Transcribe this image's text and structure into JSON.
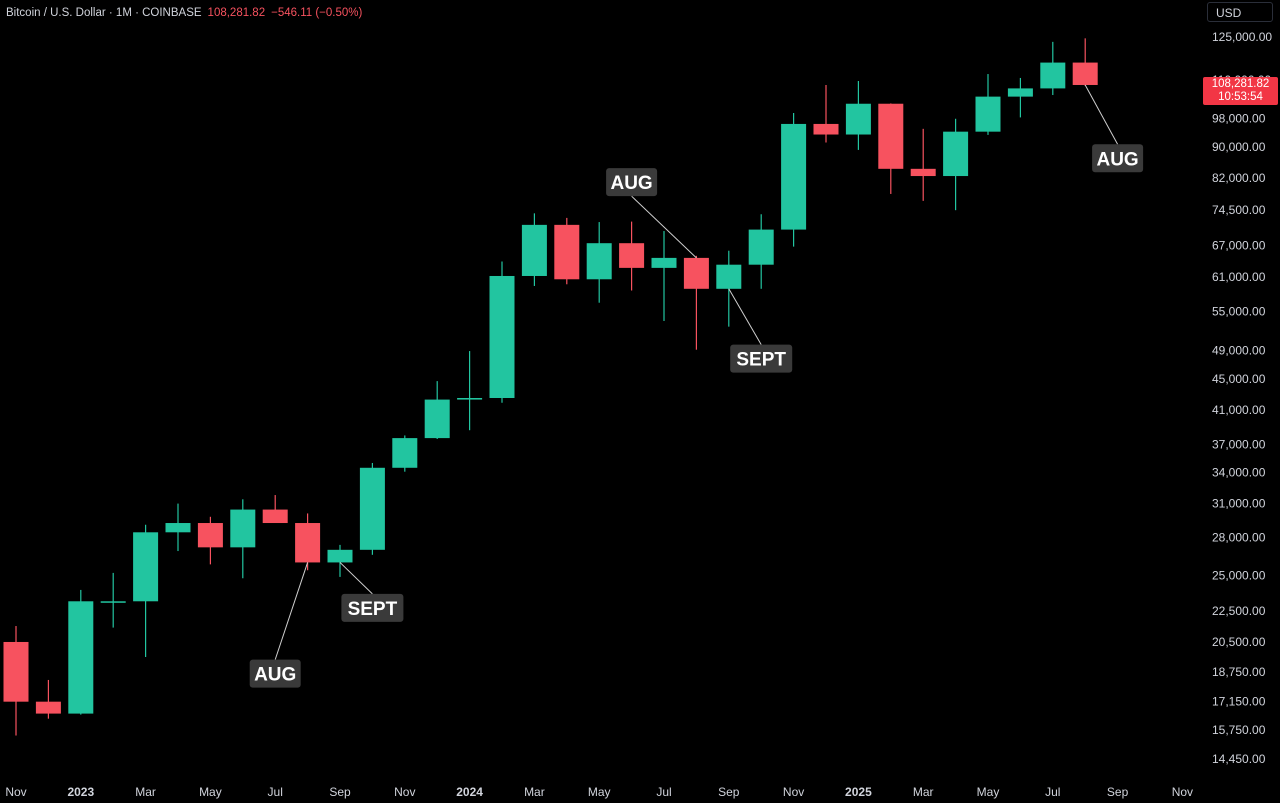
{
  "header": {
    "symbol": "Bitcoin / U.S. Dollar · 1M · COINBASE",
    "price": "108,281.82",
    "change": "−546.11 (−0.50%)"
  },
  "currency_button": "USD",
  "last_price_tag": {
    "price": "108,281.82",
    "countdown": "10:53:54"
  },
  "colors": {
    "up": "#22c5a0",
    "down": "#f7525f",
    "background": "#000000",
    "axis_text": "#d1d4dc",
    "callout_bg": "#3a3a3a"
  },
  "chart_data": {
    "type": "candlestick",
    "scale": "log",
    "grid": false,
    "ylim": [
      13800,
      133000
    ],
    "y_ticks": [
      "125,000.00",
      "110,000.00",
      "98,000.00",
      "90,000.00",
      "82,000.00",
      "74,500.00",
      "67,000.00",
      "61,000.00",
      "55,000.00",
      "49,000.00",
      "45,000.00",
      "41,000.00",
      "37,000.00",
      "34,000.00",
      "31,000.00",
      "28,000.00",
      "25,000.00",
      "22,500.00",
      "20,500.00",
      "18,750.00",
      "17,150.00",
      "15,750.00",
      "14,450.00"
    ],
    "x_ticks": [
      {
        "label": "Nov",
        "month": "2022-11"
      },
      {
        "label": "2023",
        "month": "2023-01"
      },
      {
        "label": "Mar",
        "month": "2023-03"
      },
      {
        "label": "May",
        "month": "2023-05"
      },
      {
        "label": "Jul",
        "month": "2023-07"
      },
      {
        "label": "Sep",
        "month": "2023-09"
      },
      {
        "label": "Nov",
        "month": "2023-11"
      },
      {
        "label": "2024",
        "month": "2024-01"
      },
      {
        "label": "Mar",
        "month": "2024-03"
      },
      {
        "label": "May",
        "month": "2024-05"
      },
      {
        "label": "Jul",
        "month": "2024-07"
      },
      {
        "label": "Sep",
        "month": "2024-09"
      },
      {
        "label": "Nov",
        "month": "2024-11"
      },
      {
        "label": "2025",
        "month": "2025-01"
      },
      {
        "label": "Mar",
        "month": "2025-03"
      },
      {
        "label": "May",
        "month": "2025-05"
      },
      {
        "label": "Jul",
        "month": "2025-07"
      },
      {
        "label": "Sep",
        "month": "2025-09"
      },
      {
        "label": "Nov",
        "month": "2025-11"
      }
    ],
    "candles": [
      {
        "month": "2022-11",
        "open": 20500,
        "high": 21500,
        "low": 15500,
        "close": 17150
      },
      {
        "month": "2022-12",
        "open": 17150,
        "high": 18300,
        "low": 16300,
        "close": 16550
      },
      {
        "month": "2023-01",
        "open": 16550,
        "high": 23950,
        "low": 16500,
        "close": 23150
      },
      {
        "month": "2023-02",
        "open": 23150,
        "high": 25200,
        "low": 21400,
        "close": 23150
      },
      {
        "month": "2023-03",
        "open": 23150,
        "high": 29100,
        "low": 19600,
        "close": 28450
      },
      {
        "month": "2023-04",
        "open": 28450,
        "high": 31000,
        "low": 26900,
        "close": 29250
      },
      {
        "month": "2023-05",
        "open": 29250,
        "high": 29800,
        "low": 25850,
        "close": 27200
      },
      {
        "month": "2023-06",
        "open": 27200,
        "high": 31400,
        "low": 24800,
        "close": 30450
      },
      {
        "month": "2023-07",
        "open": 30450,
        "high": 31800,
        "low": 29500,
        "close": 29250
      },
      {
        "month": "2023-08",
        "open": 29250,
        "high": 30100,
        "low": 25400,
        "close": 26000
      },
      {
        "month": "2023-09",
        "open": 26000,
        "high": 27400,
        "low": 24900,
        "close": 27000
      },
      {
        "month": "2023-10",
        "open": 27000,
        "high": 35000,
        "low": 26600,
        "close": 34500
      },
      {
        "month": "2023-11",
        "open": 34500,
        "high": 38000,
        "low": 34100,
        "close": 37700
      },
      {
        "month": "2023-12",
        "open": 37700,
        "high": 44700,
        "low": 37600,
        "close": 42300
      },
      {
        "month": "2024-01",
        "open": 42300,
        "high": 48900,
        "low": 38600,
        "close": 42500
      },
      {
        "month": "2024-02",
        "open": 42500,
        "high": 63900,
        "low": 41900,
        "close": 61200
      },
      {
        "month": "2024-03",
        "open": 61200,
        "high": 73800,
        "low": 59400,
        "close": 71300
      },
      {
        "month": "2024-04",
        "open": 71300,
        "high": 72800,
        "low": 59700,
        "close": 60600
      },
      {
        "month": "2024-05",
        "open": 60600,
        "high": 71900,
        "low": 56500,
        "close": 67500
      },
      {
        "month": "2024-06",
        "open": 67500,
        "high": 72000,
        "low": 58600,
        "close": 62700
      },
      {
        "month": "2024-07",
        "open": 62700,
        "high": 70000,
        "low": 53500,
        "close": 64600
      },
      {
        "month": "2024-08",
        "open": 64600,
        "high": 65000,
        "low": 49100,
        "close": 58900
      },
      {
        "month": "2024-09",
        "open": 58900,
        "high": 66000,
        "low": 52600,
        "close": 63300
      },
      {
        "month": "2024-10",
        "open": 63300,
        "high": 73600,
        "low": 58900,
        "close": 70300
      },
      {
        "month": "2024-11",
        "open": 70300,
        "high": 99600,
        "low": 66800,
        "close": 96400
      },
      {
        "month": "2024-12",
        "open": 96400,
        "high": 108300,
        "low": 91200,
        "close": 93400
      },
      {
        "month": "2025-01",
        "open": 93400,
        "high": 109600,
        "low": 89200,
        "close": 102400
      },
      {
        "month": "2025-02",
        "open": 102400,
        "high": 102500,
        "low": 78200,
        "close": 84300
      },
      {
        "month": "2025-03",
        "open": 84300,
        "high": 95000,
        "low": 76600,
        "close": 82500
      },
      {
        "month": "2025-04",
        "open": 82500,
        "high": 97900,
        "low": 74500,
        "close": 94200
      },
      {
        "month": "2025-05",
        "open": 94200,
        "high": 111900,
        "low": 93300,
        "close": 104600
      },
      {
        "month": "2025-06",
        "open": 104600,
        "high": 110600,
        "low": 98300,
        "close": 107200
      },
      {
        "month": "2025-07",
        "open": 107200,
        "high": 123200,
        "low": 105100,
        "close": 115800
      },
      {
        "month": "2025-08",
        "open": 115800,
        "high": 124500,
        "low": 108000,
        "close": 108300
      }
    ],
    "annotations": [
      {
        "text": "AUG",
        "month": "2023-08",
        "price": 26000,
        "label_price": 18650,
        "label_month": "2023-07"
      },
      {
        "text": "SEPT",
        "month": "2023-09",
        "price": 26000,
        "label_price": 22700,
        "label_month": "2023-10"
      },
      {
        "text": "AUG",
        "month": "2024-08",
        "price": 64600,
        "label_price": 81000,
        "label_month": "2024-06"
      },
      {
        "text": "SEPT",
        "month": "2024-09",
        "price": 58900,
        "label_price": 47800,
        "label_month": "2024-10"
      },
      {
        "text": "AUG",
        "month": "2025-08",
        "price": 108300,
        "label_price": 87000,
        "label_month": "2025-09"
      }
    ]
  }
}
